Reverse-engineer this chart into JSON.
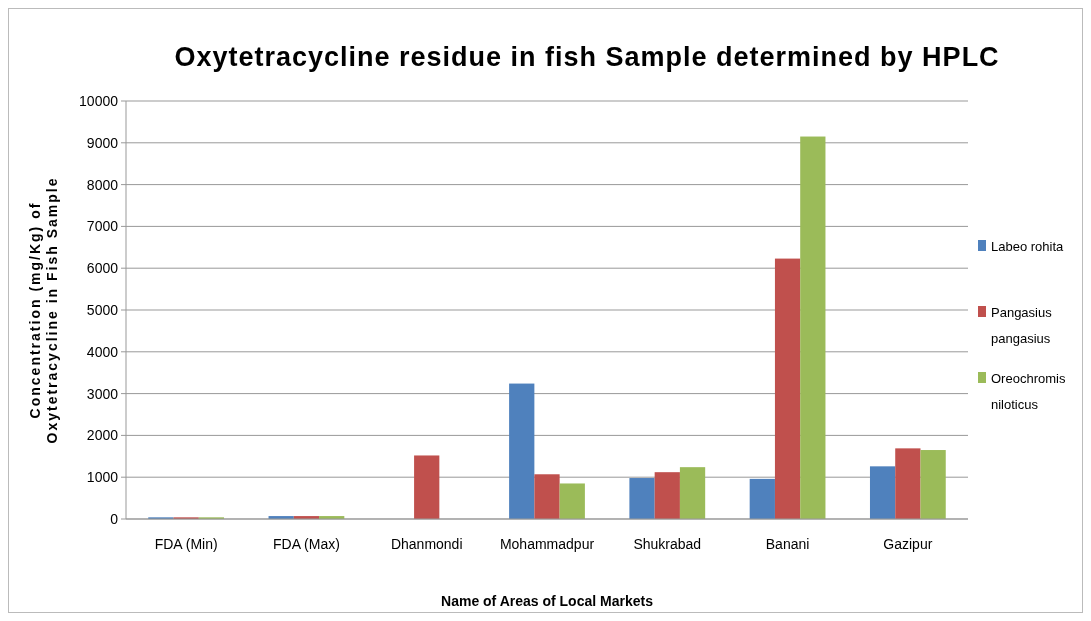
{
  "chart_data": {
    "type": "bar",
    "title": "Oxytetracycline residue in fish Sample determined by HPLC",
    "xlabel": "Name of Areas of Local Markets",
    "ylabel": "Concentration (mg/Kg) of Oxytetracycline in Fish Sample",
    "categories": [
      "FDA (Min)",
      "FDA (Max)",
      "Dhanmondi",
      "Mohammadpur",
      "Shukrabad",
      "Banani",
      "Gazipur"
    ],
    "series": [
      {
        "name": "Labeo rohita",
        "color": "#4f81bd",
        "values": [
          40,
          70,
          0,
          3240,
          980,
          960,
          1260
        ]
      },
      {
        "name": "Pangasius pangasius",
        "color": "#c0504d",
        "values": [
          40,
          70,
          1520,
          1070,
          1120,
          6230,
          1690
        ]
      },
      {
        "name": "Oreochromis niloticus",
        "color": "#9bbb59",
        "values": [
          40,
          70,
          0,
          850,
          1240,
          9150,
          1650
        ]
      }
    ],
    "ylim": [
      0,
      10000
    ],
    "yticks": [
      0,
      1000,
      2000,
      3000,
      4000,
      5000,
      6000,
      7000,
      8000,
      9000,
      10000
    ],
    "grid": "y",
    "legend": "right"
  }
}
